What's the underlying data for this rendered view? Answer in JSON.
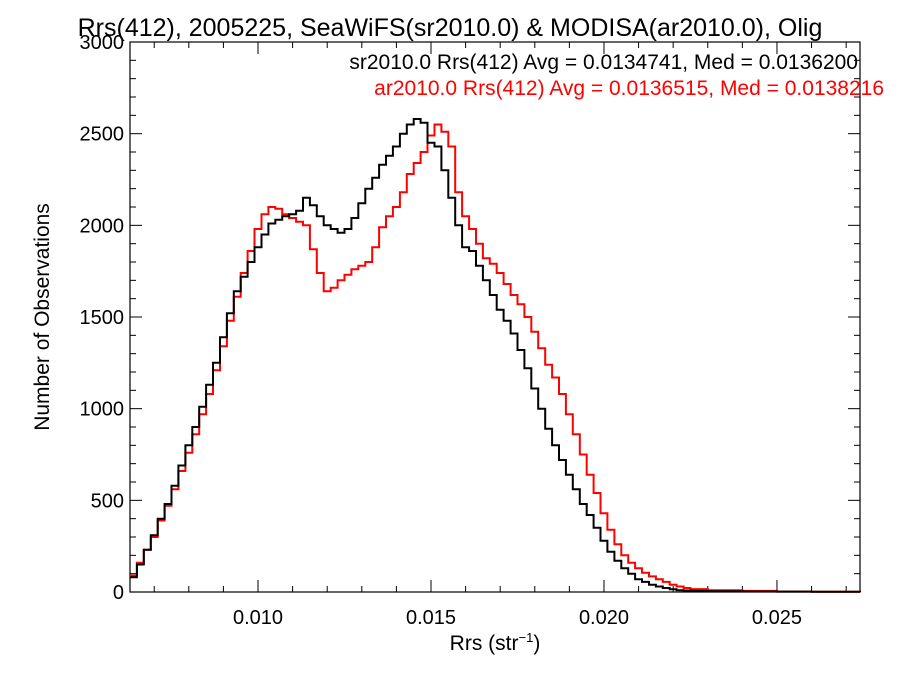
{
  "chart_data": {
    "type": "line",
    "title": "Rrs(412), 2005225, SeaWiFS(sr2010.0) & MODISA(ar2010.0), Olig",
    "xlabel": "Rrs (str",
    "xlabel_sup": "−1",
    "xlabel_close": ")",
    "ylabel": "Number of Observations",
    "xlim": [
      0.0063,
      0.0274
    ],
    "ylim": [
      0,
      3000
    ],
    "xticks": [
      0.01,
      0.015,
      0.02,
      0.025
    ],
    "xtick_labels": [
      "0.010",
      "0.015",
      "0.020",
      "0.025"
    ],
    "yticks": [
      0,
      500,
      1000,
      1500,
      2000,
      2500,
      3000
    ],
    "ytick_labels": [
      "0",
      "500",
      "1000",
      "1500",
      "2000",
      "2500",
      "3000"
    ],
    "step_style": "histogram-step",
    "grid": false,
    "legend_placement": "top-right",
    "series": [
      {
        "name": "sr2010.0 Rrs(412) Avg = 0.0134741, Med = 0.0136200",
        "color": "#000000",
        "x": [
          0.0063,
          0.0065,
          0.0067,
          0.0069,
          0.0071,
          0.0073,
          0.0075,
          0.0077,
          0.0079,
          0.0081,
          0.0083,
          0.0085,
          0.0087,
          0.0089,
          0.0091,
          0.0093,
          0.0095,
          0.0097,
          0.0099,
          0.0101,
          0.0103,
          0.0105,
          0.0107,
          0.0109,
          0.0111,
          0.0113,
          0.0115,
          0.0117,
          0.0119,
          0.0121,
          0.0123,
          0.0125,
          0.0127,
          0.0129,
          0.0131,
          0.0133,
          0.0135,
          0.0137,
          0.0139,
          0.0141,
          0.0143,
          0.0145,
          0.0147,
          0.0149,
          0.0151,
          0.0153,
          0.0155,
          0.0157,
          0.0159,
          0.0161,
          0.0163,
          0.0165,
          0.0167,
          0.0169,
          0.0171,
          0.0173,
          0.0175,
          0.0177,
          0.0179,
          0.0181,
          0.0183,
          0.0185,
          0.0187,
          0.0189,
          0.0191,
          0.0193,
          0.0195,
          0.0197,
          0.0199,
          0.0201,
          0.0203,
          0.0205,
          0.0207,
          0.0209,
          0.0211,
          0.0213,
          0.0215,
          0.0217,
          0.0219,
          0.0221,
          0.0223,
          0.0225,
          0.023,
          0.024,
          0.025,
          0.026,
          0.0274
        ],
        "y": [
          80,
          150,
          230,
          310,
          400,
          480,
          580,
          690,
          800,
          900,
          1010,
          1130,
          1250,
          1390,
          1520,
          1640,
          1720,
          1800,
          1880,
          1950,
          2010,
          2030,
          2050,
          2060,
          2080,
          2150,
          2110,
          2050,
          2000,
          1980,
          1960,
          1980,
          2040,
          2120,
          2200,
          2260,
          2330,
          2380,
          2430,
          2500,
          2550,
          2580,
          2560,
          2450,
          2430,
          2300,
          2150,
          2000,
          1880,
          1860,
          1780,
          1700,
          1620,
          1540,
          1480,
          1410,
          1320,
          1220,
          1110,
          1000,
          890,
          800,
          720,
          640,
          560,
          480,
          420,
          350,
          280,
          220,
          170,
          130,
          100,
          70,
          55,
          40,
          30,
          22,
          15,
          10,
          8,
          6,
          4,
          3,
          2,
          1,
          0
        ]
      },
      {
        "name": "ar2010.0 Rrs(412) Avg = 0.0136515, Med = 0.0138216",
        "color": "#ff0000",
        "x": [
          0.0063,
          0.0065,
          0.0067,
          0.0069,
          0.0071,
          0.0073,
          0.0075,
          0.0077,
          0.0079,
          0.0081,
          0.0083,
          0.0085,
          0.0087,
          0.0089,
          0.0091,
          0.0093,
          0.0095,
          0.0097,
          0.0099,
          0.0101,
          0.0103,
          0.0105,
          0.0107,
          0.0109,
          0.0111,
          0.0113,
          0.0115,
          0.0117,
          0.0119,
          0.0121,
          0.0123,
          0.0125,
          0.0127,
          0.0129,
          0.0131,
          0.0133,
          0.0135,
          0.0137,
          0.0139,
          0.0141,
          0.0143,
          0.0145,
          0.0147,
          0.0149,
          0.0151,
          0.0153,
          0.0155,
          0.0157,
          0.0159,
          0.0161,
          0.0163,
          0.0165,
          0.0167,
          0.0169,
          0.0171,
          0.0173,
          0.0175,
          0.0177,
          0.0179,
          0.0181,
          0.0183,
          0.0185,
          0.0187,
          0.0189,
          0.0191,
          0.0193,
          0.0195,
          0.0197,
          0.0199,
          0.0201,
          0.0203,
          0.0205,
          0.0207,
          0.0209,
          0.0211,
          0.0213,
          0.0215,
          0.0217,
          0.0219,
          0.0221,
          0.0223,
          0.0225,
          0.023,
          0.024,
          0.025,
          0.026,
          0.0274
        ],
        "y": [
          90,
          160,
          230,
          300,
          390,
          470,
          560,
          660,
          760,
          860,
          970,
          1080,
          1210,
          1340,
          1480,
          1610,
          1740,
          1860,
          1980,
          2060,
          2100,
          2090,
          2060,
          2040,
          2020,
          2000,
          1870,
          1740,
          1640,
          1660,
          1700,
          1730,
          1760,
          1780,
          1800,
          1880,
          1990,
          2050,
          2100,
          2180,
          2280,
          2340,
          2400,
          2490,
          2550,
          2510,
          2430,
          2180,
          2050,
          1980,
          1900,
          1820,
          1790,
          1740,
          1680,
          1620,
          1570,
          1500,
          1420,
          1330,
          1240,
          1170,
          1080,
          970,
          860,
          750,
          640,
          540,
          430,
          340,
          260,
          200,
          160,
          130,
          105,
          85,
          70,
          55,
          40,
          30,
          22,
          16,
          10,
          6,
          3,
          1,
          0
        ]
      }
    ]
  }
}
